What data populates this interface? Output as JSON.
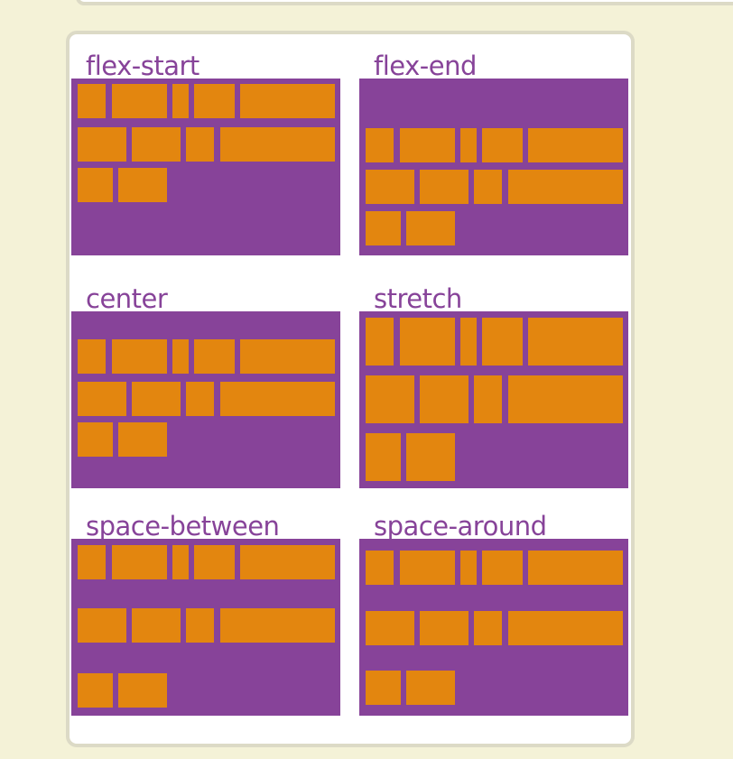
{
  "colors": {
    "page_background": "#f4f2d7",
    "card_background": "#ffffff",
    "card_border": "#dcdac6",
    "container": "#874399",
    "item": "#e3860f",
    "label": "#874399"
  },
  "demos": [
    {
      "key": "flex_start",
      "label": "flex-start",
      "align_content": "flex-start"
    },
    {
      "key": "flex_end",
      "label": "flex-end",
      "align_content": "flex-end"
    },
    {
      "key": "center",
      "label": "center",
      "align_content": "center"
    },
    {
      "key": "stretch",
      "label": "stretch",
      "align_content": "stretch"
    },
    {
      "key": "space_between",
      "label": "space-between",
      "align_content": "space-between"
    },
    {
      "key": "space_around",
      "label": "space-around",
      "align_content": "space-around"
    }
  ],
  "items_per_demo": 11,
  "lines_per_demo": 3
}
